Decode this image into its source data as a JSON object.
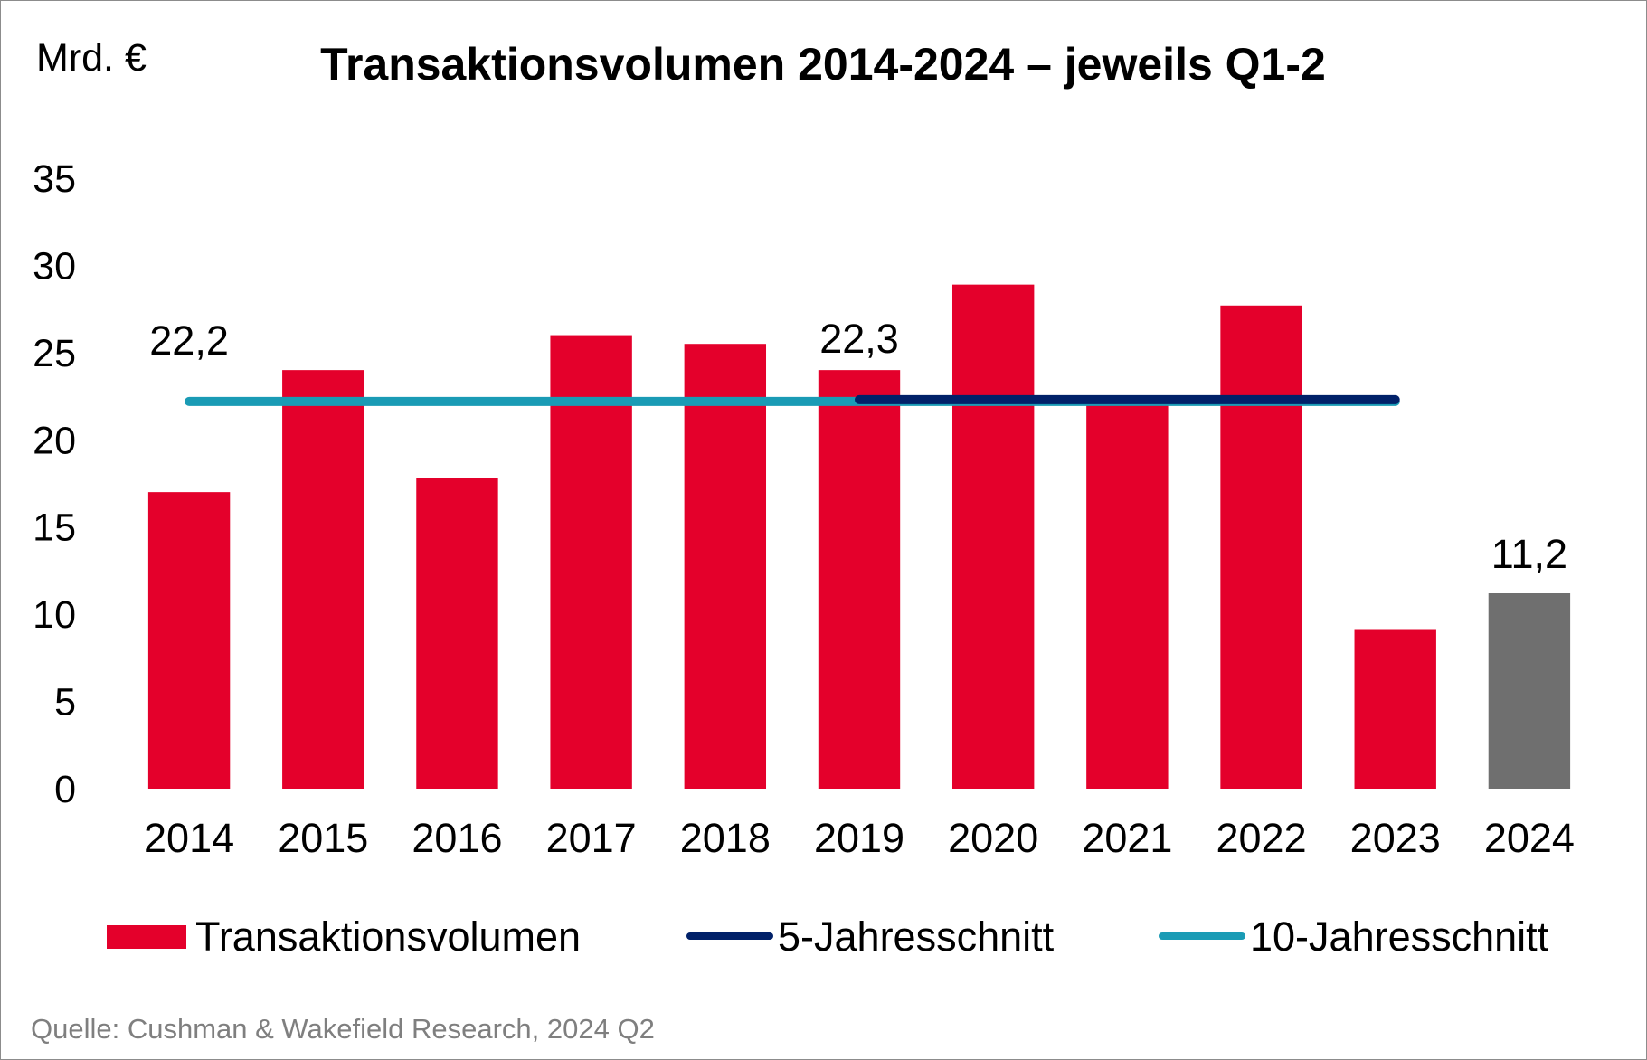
{
  "chart_data": {
    "type": "bar",
    "title": "Transaktionsvolumen 2014-2024 – jeweils Q1-2",
    "unit_label": "Mrd. €",
    "xlabel": "",
    "ylabel": "Mrd. €",
    "ylim": [
      0,
      35
    ],
    "yticks": [
      0,
      5,
      10,
      15,
      20,
      25,
      30,
      35
    ],
    "ytick_labels": [
      "0",
      "5",
      "10",
      "15",
      "20",
      "25",
      "30",
      "35"
    ],
    "grid": false,
    "categories": [
      "2014",
      "2015",
      "2016",
      "2017",
      "2018",
      "2019",
      "2020",
      "2021",
      "2022",
      "2023",
      "2024"
    ],
    "series": [
      {
        "name": "Transaktionsvolumen",
        "kind": "bar",
        "color": "#E4002B",
        "highlight_color": "#6F6F6F",
        "highlight_category": "2024",
        "values": [
          17.0,
          24.0,
          17.8,
          26.0,
          25.5,
          24.0,
          28.9,
          22.0,
          27.7,
          9.1,
          11.2
        ]
      },
      {
        "name": "5-Jahresschnitt",
        "kind": "line",
        "color": "#012169",
        "from": "2019",
        "to": "2023",
        "value": 22.3
      },
      {
        "name": "10-Jahresschnitt",
        "kind": "line",
        "color": "#1A9BB5",
        "from": "2014",
        "to": "2023",
        "value": 22.2
      }
    ],
    "data_labels": [
      {
        "category": "2014",
        "value": 22.2,
        "text": "22,2"
      },
      {
        "category": "2019",
        "value": 22.3,
        "text": "22,3"
      },
      {
        "category": "2024",
        "value": 11.2,
        "text": "11,2"
      }
    ],
    "legend": {
      "placement": "bottom",
      "items": [
        "Transaktionsvolumen",
        "5-Jahresschnitt",
        "10-Jahresschnitt"
      ]
    }
  },
  "source": "Quelle: Cushman & Wakefield Research, 2024 Q2"
}
